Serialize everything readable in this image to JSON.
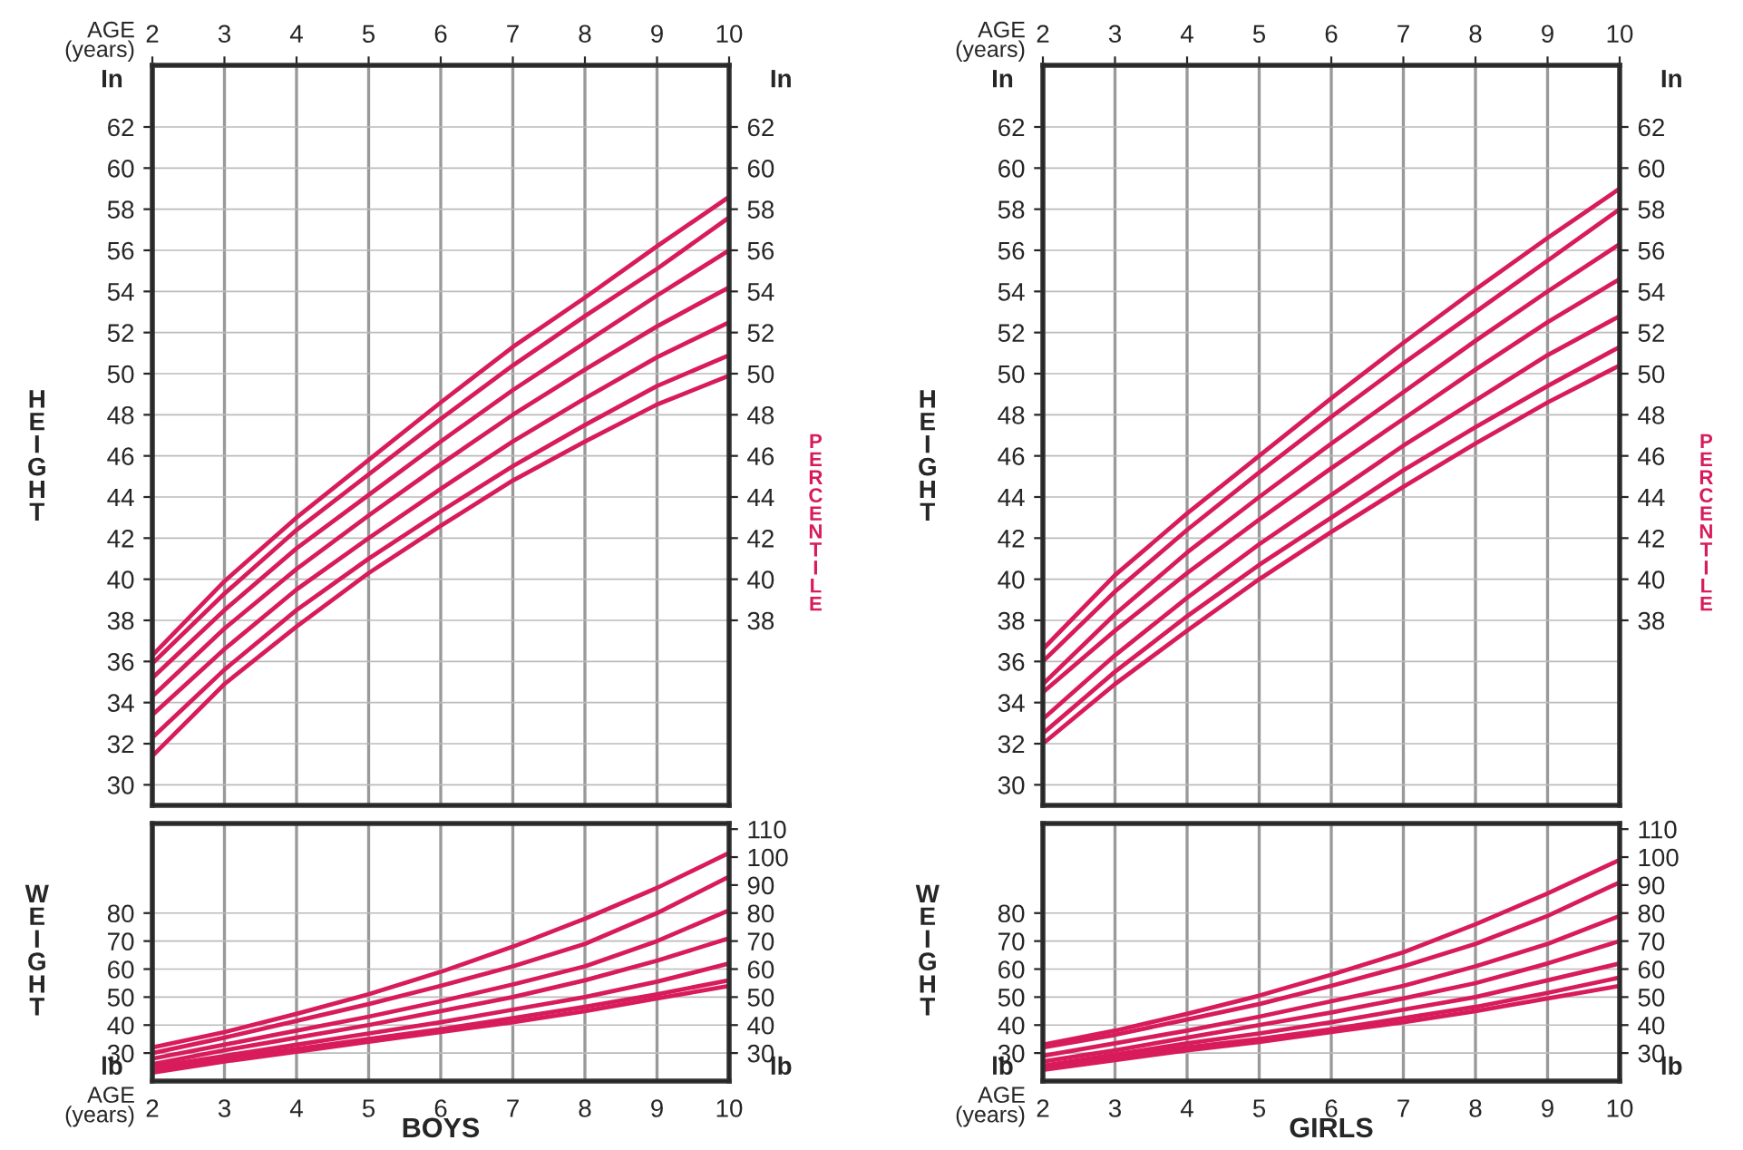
{
  "chart_data": [
    {
      "type": "line",
      "ylabel": "HEIGHT",
      "y2label": "PERCENTILE",
      "xlabel": "AGE\n(years)",
      "annotations": [
        "In",
        "In"
      ],
      "x": [
        2,
        3,
        4,
        5,
        6,
        7,
        8,
        9,
        10
      ],
      "xlim": [
        2,
        10
      ],
      "xticks": [
        2,
        3,
        4,
        5,
        6,
        7,
        8,
        9,
        10
      ],
      "ylim": [
        29,
        65
      ],
      "yticks": [
        30,
        32,
        34,
        36,
        38,
        40,
        42,
        44,
        46,
        48,
        50,
        52,
        54,
        56,
        58,
        60,
        62
      ],
      "y2lim": [
        29,
        65
      ],
      "y2ticks": [
        38,
        40,
        42,
        44,
        46,
        48,
        50,
        52,
        54,
        56,
        58,
        60,
        62
      ],
      "grid": true,
      "line_style": "solid",
      "series": [
        {
          "color": "#d81b5a",
          "values": [
            36.3,
            39.9,
            43.0,
            45.8,
            48.6,
            51.3,
            53.7,
            56.2,
            58.6
          ]
        },
        {
          "color": "#d81b5a",
          "values": [
            35.9,
            39.3,
            42.4,
            45.1,
            47.8,
            50.4,
            52.8,
            55.1,
            57.6
          ]
        },
        {
          "color": "#d81b5a",
          "values": [
            35.2,
            38.5,
            41.5,
            44.1,
            46.7,
            49.2,
            51.5,
            53.8,
            56.0
          ]
        },
        {
          "color": "#d81b5a",
          "values": [
            34.3,
            37.6,
            40.5,
            43.1,
            45.6,
            48.0,
            50.2,
            52.3,
            54.2
          ]
        },
        {
          "color": "#d81b5a",
          "values": [
            33.4,
            36.6,
            39.5,
            42.0,
            44.4,
            46.7,
            48.8,
            50.8,
            52.5
          ]
        },
        {
          "color": "#d81b5a",
          "values": [
            32.3,
            35.6,
            38.5,
            41.0,
            43.3,
            45.5,
            47.5,
            49.4,
            50.9
          ]
        },
        {
          "color": "#d81b5a",
          "values": [
            31.4,
            34.9,
            37.7,
            40.3,
            42.6,
            44.8,
            46.7,
            48.5,
            49.9
          ]
        }
      ]
    },
    {
      "type": "line",
      "title": "BOYS",
      "ylabel": "WEIGHT",
      "xlabel": "AGE\n(years)",
      "annotations": [
        "lb",
        "lb"
      ],
      "x": [
        2,
        3,
        4,
        5,
        6,
        7,
        8,
        9,
        10
      ],
      "xlim": [
        2,
        10
      ],
      "xticks": [
        2,
        3,
        4,
        5,
        6,
        7,
        8,
        9,
        10
      ],
      "ylim": [
        20,
        112
      ],
      "yticks": [
        30,
        40,
        50,
        60,
        70,
        80
      ],
      "y2lim": [
        20,
        112
      ],
      "y2ticks": [
        30,
        40,
        50,
        60,
        70,
        80,
        90,
        100,
        110
      ],
      "grid": true,
      "line_style": "solid",
      "series": [
        {
          "color": "#d81b5a",
          "values": [
            32,
            37.5,
            44,
            51,
            59,
            68,
            78,
            89,
            101.5
          ]
        },
        {
          "color": "#d81b5a",
          "values": [
            30,
            35.5,
            41.5,
            47.5,
            54,
            61,
            69,
            80,
            93
          ]
        },
        {
          "color": "#d81b5a",
          "values": [
            28,
            33,
            38,
            43,
            48.5,
            54.5,
            61,
            70,
            81
          ]
        },
        {
          "color": "#d81b5a",
          "values": [
            26,
            31,
            35.5,
            40,
            45,
            50,
            56,
            63,
            71
          ]
        },
        {
          "color": "#d81b5a",
          "values": [
            25,
            29,
            33,
            37,
            41,
            45.5,
            50,
            55.5,
            62
          ]
        },
        {
          "color": "#d81b5a",
          "values": [
            23.5,
            28,
            31.5,
            35,
            38.5,
            42.5,
            46.5,
            51,
            56
          ]
        },
        {
          "color": "#d81b5a",
          "values": [
            23,
            27,
            30.5,
            34,
            37.5,
            41,
            45,
            49.5,
            54
          ]
        }
      ]
    },
    {
      "type": "line",
      "ylabel": "HEIGHT",
      "y2label": "PERCENTILE",
      "xlabel": "AGE\n(years)",
      "annotations": [
        "In",
        "In"
      ],
      "x": [
        2,
        3,
        4,
        5,
        6,
        7,
        8,
        9,
        10
      ],
      "xlim": [
        2,
        10
      ],
      "xticks": [
        2,
        3,
        4,
        5,
        6,
        7,
        8,
        9,
        10
      ],
      "ylim": [
        29,
        65
      ],
      "yticks": [
        30,
        32,
        34,
        36,
        38,
        40,
        42,
        44,
        46,
        48,
        50,
        52,
        54,
        56,
        58,
        60,
        62
      ],
      "y2lim": [
        29,
        65
      ],
      "y2ticks": [
        38,
        40,
        42,
        44,
        46,
        48,
        50,
        52,
        54,
        56,
        58,
        60,
        62
      ],
      "grid": true,
      "line_style": "solid",
      "series": [
        {
          "color": "#d81b5a",
          "values": [
            36.6,
            40.2,
            43.2,
            46.0,
            48.8,
            51.5,
            54.1,
            56.6,
            59.0
          ]
        },
        {
          "color": "#d81b5a",
          "values": [
            36.0,
            39.4,
            42.4,
            45.2,
            47.9,
            50.5,
            53.0,
            55.5,
            58.0
          ]
        },
        {
          "color": "#d81b5a",
          "values": [
            34.9,
            38.3,
            41.3,
            44.0,
            46.6,
            49.1,
            51.6,
            54.0,
            56.3
          ]
        },
        {
          "color": "#d81b5a",
          "values": [
            34.5,
            37.5,
            40.3,
            42.9,
            45.4,
            47.8,
            50.2,
            52.5,
            54.6
          ]
        },
        {
          "color": "#d81b5a",
          "values": [
            33.2,
            36.3,
            39.1,
            41.7,
            44.1,
            46.5,
            48.7,
            50.9,
            52.8
          ]
        },
        {
          "color": "#d81b5a",
          "values": [
            32.5,
            35.5,
            38.2,
            40.7,
            43.0,
            45.3,
            47.4,
            49.4,
            51.3
          ]
        },
        {
          "color": "#d81b5a",
          "values": [
            32.0,
            34.9,
            37.5,
            40.0,
            42.3,
            44.5,
            46.6,
            48.6,
            50.4
          ]
        }
      ]
    },
    {
      "type": "line",
      "title": "GIRLS",
      "ylabel": "WEIGHT",
      "xlabel": "AGE\n(years)",
      "annotations": [
        "lb",
        "lb"
      ],
      "x": [
        2,
        3,
        4,
        5,
        6,
        7,
        8,
        9,
        10
      ],
      "xlim": [
        2,
        10
      ],
      "xticks": [
        2,
        3,
        4,
        5,
        6,
        7,
        8,
        9,
        10
      ],
      "ylim": [
        20,
        112
      ],
      "yticks": [
        30,
        40,
        50,
        60,
        70,
        80
      ],
      "y2lim": [
        20,
        112
      ],
      "y2ticks": [
        30,
        40,
        50,
        60,
        70,
        80,
        90,
        100,
        110
      ],
      "grid": true,
      "line_style": "solid",
      "series": [
        {
          "color": "#d81b5a",
          "values": [
            33,
            38,
            44,
            50.5,
            58,
            66,
            76,
            87,
            99
          ]
        },
        {
          "color": "#d81b5a",
          "values": [
            32,
            36.5,
            42,
            47.5,
            54,
            61,
            69,
            79,
            91
          ]
        },
        {
          "color": "#d81b5a",
          "values": [
            29,
            33.5,
            38,
            43,
            48.5,
            54,
            61,
            69,
            79
          ]
        },
        {
          "color": "#d81b5a",
          "values": [
            27,
            31,
            35.5,
            40,
            44.5,
            49.5,
            55,
            62,
            70
          ]
        },
        {
          "color": "#d81b5a",
          "values": [
            25.5,
            29.5,
            33.5,
            37,
            41,
            45.5,
            50,
            56,
            62
          ]
        },
        {
          "color": "#d81b5a",
          "values": [
            24.5,
            28.5,
            32,
            35,
            38.5,
            42.5,
            46.5,
            51.5,
            57
          ]
        },
        {
          "color": "#d81b5a",
          "values": [
            24,
            27.5,
            31,
            34,
            37.5,
            41,
            45,
            49.5,
            54
          ]
        }
      ]
    }
  ]
}
